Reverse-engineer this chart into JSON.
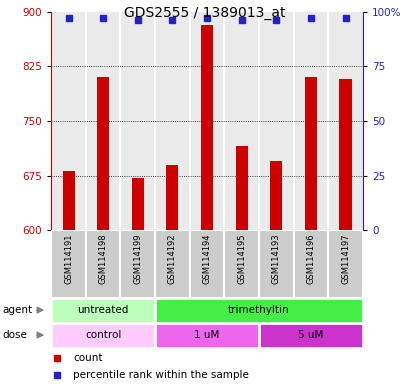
{
  "title": "GDS2555 / 1389013_at",
  "samples": [
    "GSM114191",
    "GSM114198",
    "GSM114199",
    "GSM114192",
    "GSM114194",
    "GSM114195",
    "GSM114193",
    "GSM114196",
    "GSM114197"
  ],
  "bar_values": [
    682,
    810,
    672,
    690,
    882,
    715,
    695,
    810,
    808
  ],
  "percentile_values": [
    97,
    97,
    96,
    96,
    97,
    96,
    96,
    97,
    97
  ],
  "bar_color": "#cc0000",
  "dot_color": "#2222cc",
  "ymin": 600,
  "ymax": 900,
  "yticks_left": [
    600,
    675,
    750,
    825,
    900
  ],
  "yticks_right": [
    0,
    25,
    50,
    75,
    100
  ],
  "right_yticklabels": [
    "0",
    "25",
    "50",
    "75",
    "100%"
  ],
  "agent_groups": [
    {
      "label": "untreated",
      "start": 0,
      "end": 3,
      "color": "#bbffbb"
    },
    {
      "label": "trimethyltin",
      "start": 3,
      "end": 9,
      "color": "#44ee44"
    }
  ],
  "dose_groups": [
    {
      "label": "control",
      "start": 0,
      "end": 3,
      "color": "#ffccff"
    },
    {
      "label": "1 uM",
      "start": 3,
      "end": 6,
      "color": "#ee66ee"
    },
    {
      "label": "5 uM",
      "start": 6,
      "end": 9,
      "color": "#cc33cc"
    }
  ],
  "bar_bg_color": "#cccccc",
  "chart_bg_color": "#ffffff",
  "title_fontsize": 10,
  "tick_fontsize": 7.5,
  "sample_fontsize": 6,
  "row_fontsize": 7.5
}
